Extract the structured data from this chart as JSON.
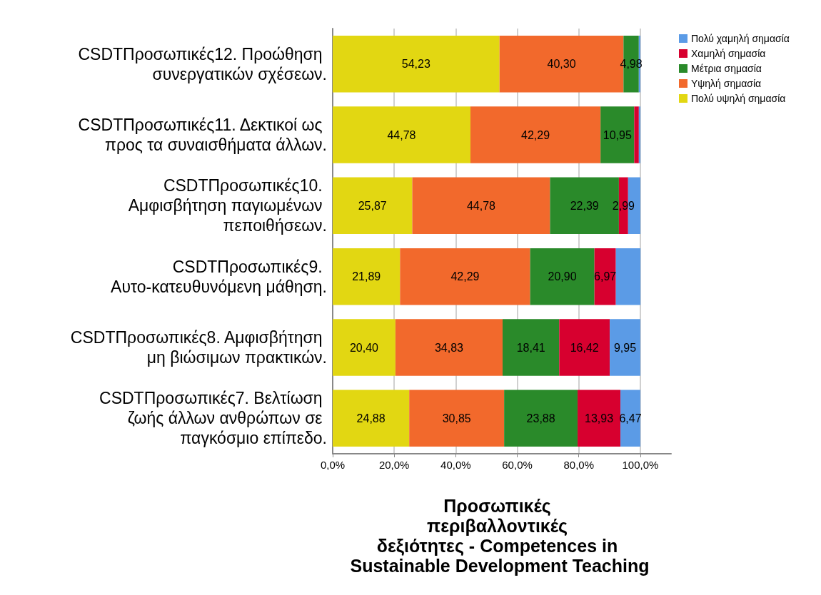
{
  "chart_data": {
    "type": "bar",
    "orientation": "horizontal",
    "stacked": true,
    "categories": [
      "CSDTΠροσωπικές12. Προώθηση συνεργατικών σχέσεων.",
      "CSDTΠροσωπικές11. Δεκτικοί ως προς τα συναισθήματα άλλων.",
      "CSDTΠροσωπικές10. Αμφισβήτηση παγιωμένων πεποιθήσεων.",
      "CSDTΠροσωπικές9. Αυτο-κατευθυνόμενη μάθηση.",
      "CSDTΠροσωπικές8. Αμφισβήτηση μη βιώσιμων πρακτικών.",
      "CSDTΠροσωπικές7. Βελτίωση ζωής άλλων ανθρώπων σε παγκόσμιο επίπεδο."
    ],
    "series": [
      {
        "name": "Πολύ υψηλή σημασία",
        "color": "#e2d712",
        "values": [
          54.23,
          44.78,
          25.87,
          21.89,
          20.4,
          24.88
        ],
        "value_labels": [
          "54,23",
          "44,78",
          "25,87",
          "21,89",
          "20,40",
          "24,88"
        ]
      },
      {
        "name": "Υψηλή σημασία",
        "color": "#f2692c",
        "values": [
          40.3,
          42.29,
          44.78,
          42.29,
          34.83,
          30.85
        ],
        "value_labels": [
          "40,30",
          "42,29",
          "44,78",
          "42,29",
          "34,83",
          "30,85"
        ]
      },
      {
        "name": "Μέτρια σημασία",
        "color": "#2a8a2a",
        "values": [
          4.98,
          10.95,
          22.39,
          20.9,
          18.41,
          23.88
        ],
        "value_labels": [
          "4,98",
          "10,95",
          "22,39",
          "20,90",
          "18,41",
          "23,88"
        ]
      },
      {
        "name": "Χαμηλή σημασία",
        "color": "#d7002f",
        "values": [
          0,
          1.5,
          2.99,
          6.97,
          16.42,
          13.93
        ],
        "value_labels": [
          null,
          null,
          "2,99",
          "6,97",
          "16,42",
          "13,93"
        ]
      },
      {
        "name": "Πολύ χαμηλή σημασία",
        "color": "#5b9be6",
        "values": [
          0.5,
          0.5,
          4.0,
          8.0,
          9.95,
          6.47
        ],
        "value_labels": [
          null,
          null,
          null,
          null,
          "9,95",
          "6,47"
        ]
      }
    ],
    "xlim": [
      0,
      110
    ],
    "xticks": [
      {
        "value": 0,
        "label": "0,0%"
      },
      {
        "value": 20,
        "label": "20,0%"
      },
      {
        "value": 40,
        "label": "40,0%"
      },
      {
        "value": 60,
        "label": "60,0%"
      },
      {
        "value": 80,
        "label": "80,0%"
      },
      {
        "value": 100,
        "label": "100,0%"
      }
    ],
    "xlabel": "Προσωπικές περιβαλλοντικές δεξιότητες - Competences in Sustainable Development Teaching",
    "grid": "x",
    "legend": "top right"
  }
}
